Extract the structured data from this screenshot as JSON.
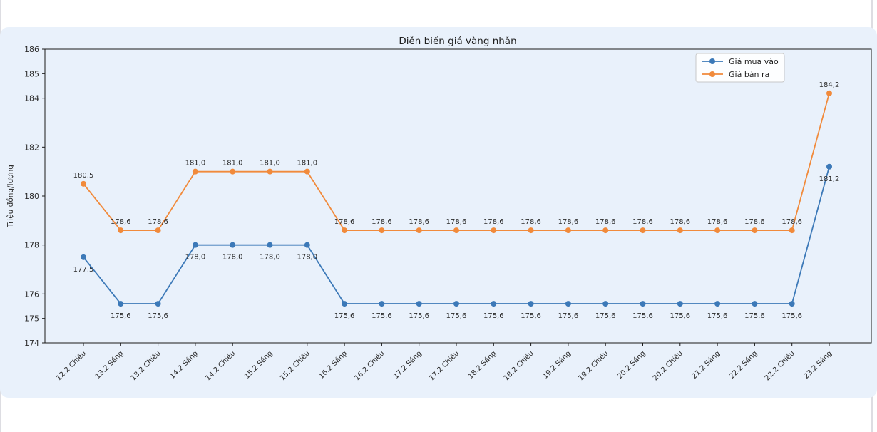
{
  "page": {
    "background_color": "#ffffff",
    "panel_color": "#e9f1fb",
    "axis_color": "#1a1a1a",
    "legend_border_color": "#c8c8c8",
    "legend_background_color": "#ffffff"
  },
  "chart_data": {
    "type": "line",
    "title": "Diễn biến giá vàng nhẫn",
    "xlabel": "",
    "ylabel": "Triệu đồng/lượng",
    "categories": [
      "12.2 Chiều",
      "13.2 Sáng",
      "13.2 Chiều",
      "14.2 Sáng",
      "14.2 Chiều",
      "15.2 Sáng",
      "15.2 Chiều",
      "16.2 Sáng",
      "16.2 Chiều",
      "17.2 Sáng",
      "17.2 Chiều",
      "18.2 Sáng",
      "18.2 Chiều",
      "19.2 Sáng",
      "19.2 Chiều",
      "20.2 Sáng",
      "20.2 Chiều",
      "21.2 Sáng",
      "22.2 Sáng",
      "22.2 Chiều",
      "23.2 Sáng"
    ],
    "series": [
      {
        "name": "Giá mua vào",
        "color": "#3c79b8",
        "values": [
          177.5,
          175.6,
          175.6,
          178.0,
          178.0,
          178.0,
          178.0,
          175.6,
          175.6,
          175.6,
          175.6,
          175.6,
          175.6,
          175.6,
          175.6,
          175.6,
          175.6,
          175.6,
          175.6,
          175.6,
          181.2
        ]
      },
      {
        "name": "Giá bán ra",
        "color": "#f18a3b",
        "values": [
          180.5,
          178.6,
          178.6,
          181.0,
          181.0,
          181.0,
          181.0,
          178.6,
          178.6,
          178.6,
          178.6,
          178.6,
          178.6,
          178.6,
          178.6,
          178.6,
          178.6,
          178.6,
          178.6,
          178.6,
          184.2
        ]
      }
    ],
    "ylim": [
      174,
      186
    ],
    "yticks": [
      174,
      175,
      176,
      178,
      180,
      182,
      184,
      185,
      186
    ],
    "grid": false,
    "legend_position": "top-right",
    "point_labels": true,
    "decimal_format": "comma"
  }
}
